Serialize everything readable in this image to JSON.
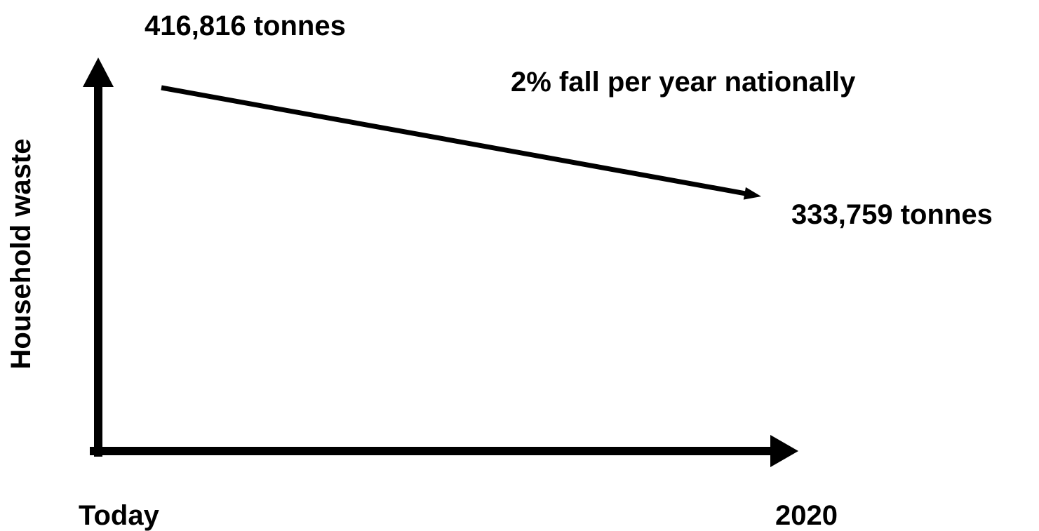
{
  "chart_data": {
    "type": "line",
    "x": [
      "Today",
      "2020"
    ],
    "series": [
      {
        "values": [
          416816,
          333759
        ]
      }
    ],
    "title": "",
    "xlabel": "",
    "ylabel": "Household waste",
    "annotations": {
      "start": "416,816 tonnes",
      "end": "333,759 tonnes",
      "trend": "2% fall per year nationally"
    },
    "grid": false
  },
  "colors": {
    "ink": "#000000",
    "background": "#ffffff"
  }
}
